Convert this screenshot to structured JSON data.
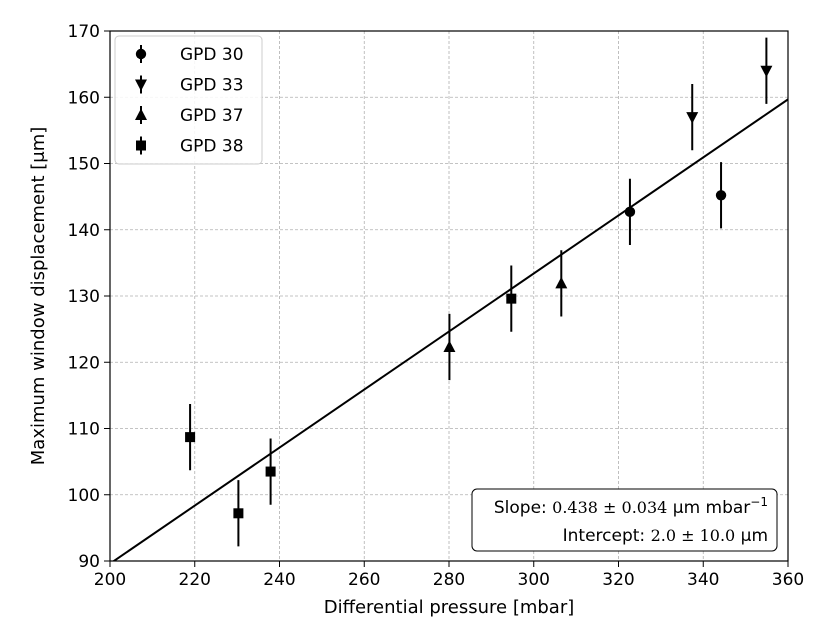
{
  "chart_data": {
    "type": "scatter",
    "xlabel": "Differential pressure [mbar]",
    "ylabel": "Maximum window displacement [μm]",
    "xlim": [
      200,
      360
    ],
    "ylim": [
      90,
      170
    ],
    "xticks": [
      200,
      220,
      240,
      260,
      280,
      300,
      320,
      340,
      360
    ],
    "yticks": [
      90,
      100,
      110,
      120,
      130,
      140,
      150,
      160,
      170
    ],
    "grid": true,
    "legend_position": "top-left",
    "series": [
      {
        "name": "GPD 30",
        "marker": "circle",
        "points": [
          {
            "x": 322.7,
            "y": 142.7,
            "err": 5.0
          },
          {
            "x": 344.2,
            "y": 145.2,
            "err": 5.0
          }
        ]
      },
      {
        "name": "GPD 33",
        "marker": "triangle-down",
        "points": [
          {
            "x": 337.4,
            "y": 157.0,
            "err": 5.0
          },
          {
            "x": 354.9,
            "y": 164.0,
            "err": 5.0
          }
        ]
      },
      {
        "name": "GPD 37",
        "marker": "triangle-up",
        "points": [
          {
            "x": 280.1,
            "y": 122.3,
            "err": 5.0
          },
          {
            "x": 306.5,
            "y": 131.9,
            "err": 5.0
          }
        ]
      },
      {
        "name": "GPD 38",
        "marker": "square",
        "points": [
          {
            "x": 218.9,
            "y": 108.7,
            "err": 5.0
          },
          {
            "x": 230.3,
            "y": 97.2,
            "err": 5.0
          },
          {
            "x": 237.9,
            "y": 103.5,
            "err": 5.0
          },
          {
            "x": 294.7,
            "y": 129.6,
            "err": 5.0
          }
        ]
      }
    ],
    "fit_line": {
      "slope": 0.438,
      "intercept": 2.0
    },
    "annotation": {
      "slope_label": "Slope: ",
      "slope_value": "0.438 ± 0.034",
      "slope_unit": " μm mbar",
      "slope_exp": "−1",
      "intercept_label": "Intercept: ",
      "intercept_value": "2.0 ± 10.0",
      "intercept_unit": " μm"
    }
  }
}
